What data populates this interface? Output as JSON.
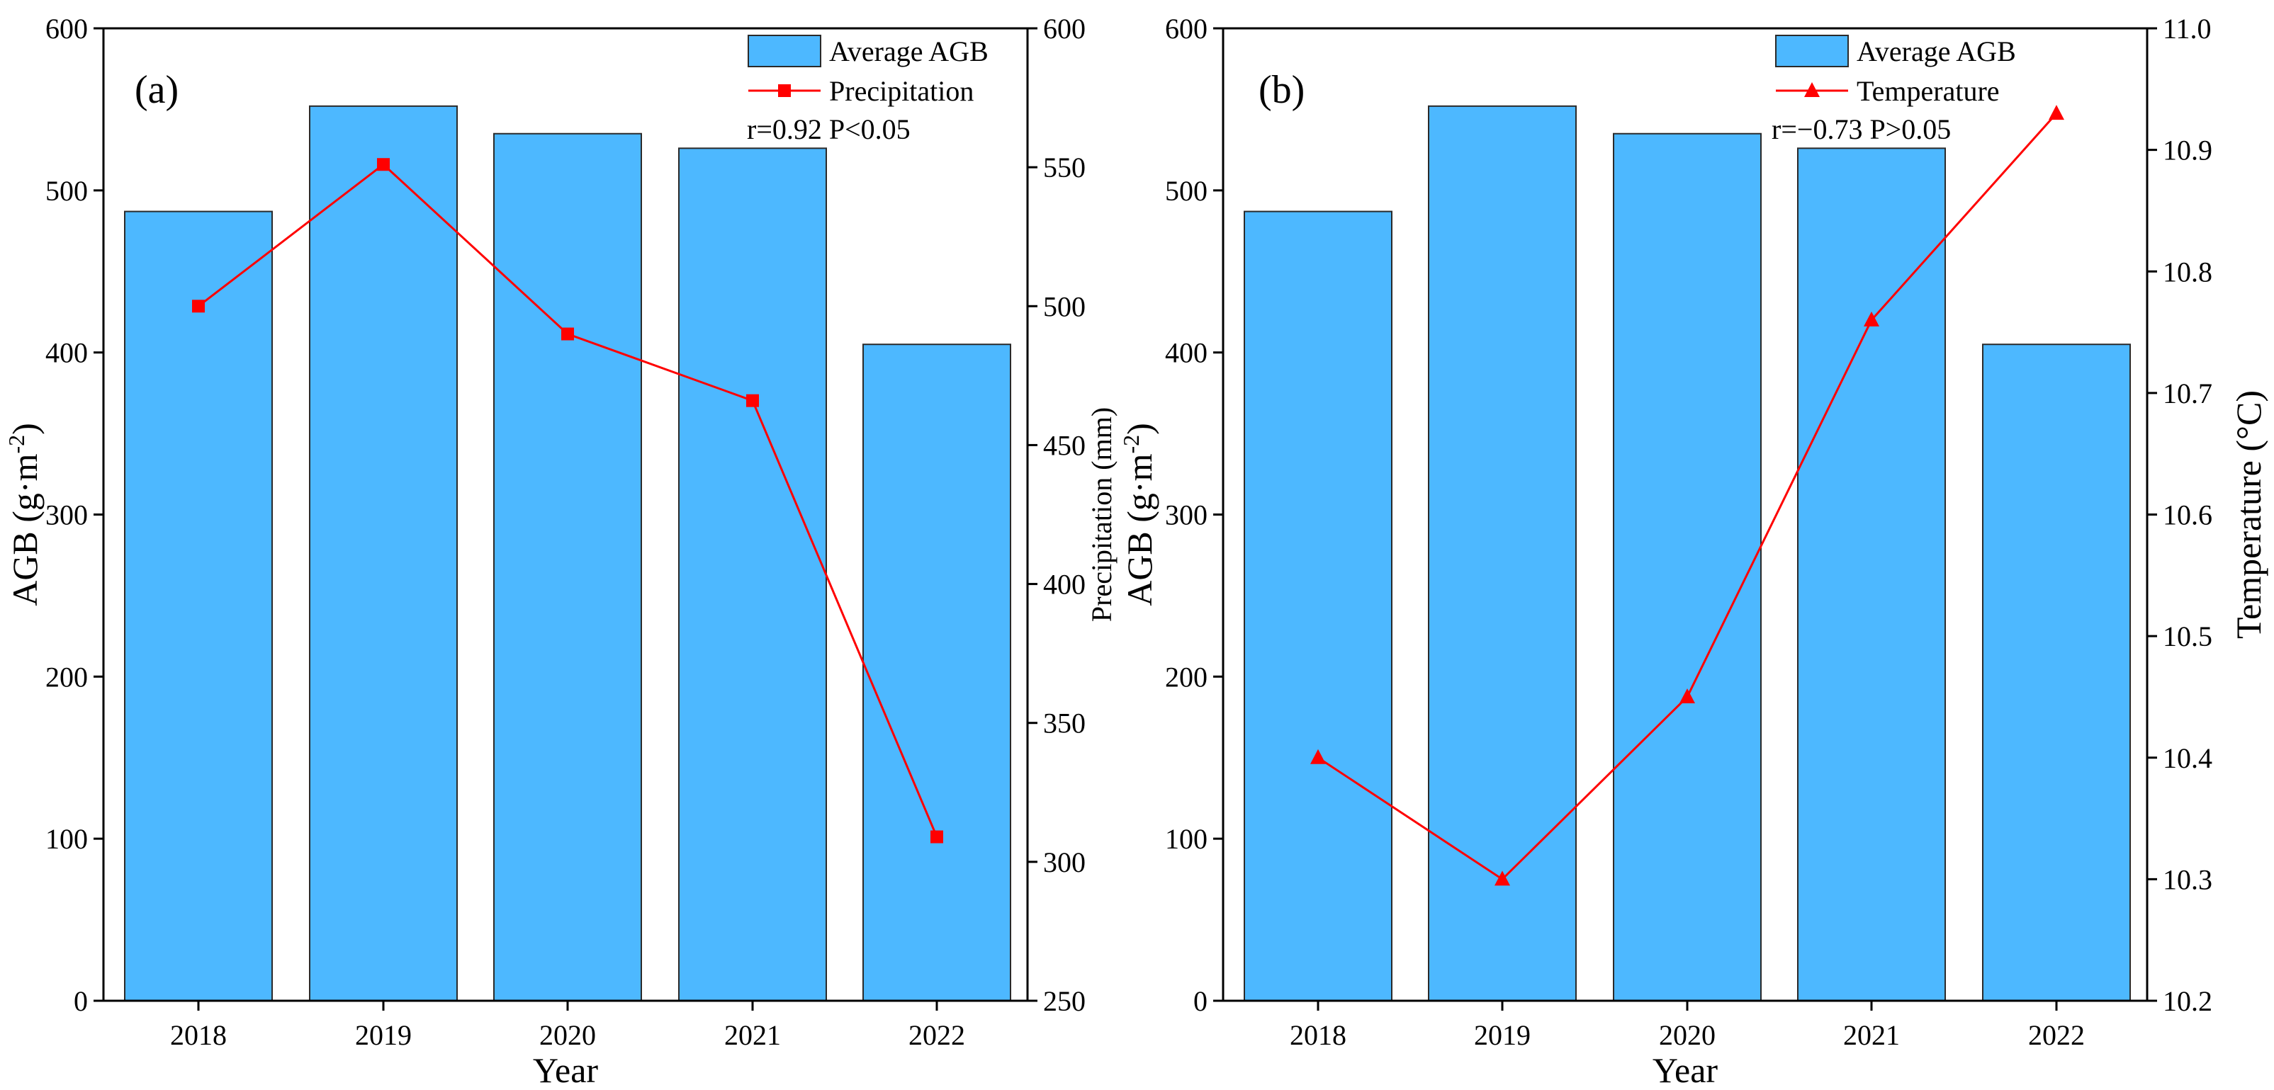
{
  "colors": {
    "bar_fill": "#4DB8FF",
    "bar_stroke": "#2a2a2a",
    "line": "#FF0000",
    "axis": "#000000"
  },
  "chart_data": [
    {
      "type": "bar+line",
      "panel_label": "(a)",
      "categories": [
        "2018",
        "2019",
        "2020",
        "2021",
        "2022"
      ],
      "xlabel": "Year",
      "ylabel_left": "AGB (g·m",
      "ylabel_left_sup": "-2",
      "ylabel_left_suffix": ")",
      "ylabel_right": "Precipitation (mm)",
      "ylim_left": [
        0,
        600
      ],
      "yticks_left": [
        0,
        100,
        200,
        300,
        400,
        500,
        600
      ],
      "ylim_right": [
        250,
        600
      ],
      "yticks_right": [
        250,
        300,
        350,
        400,
        450,
        500,
        550,
        600
      ],
      "series": [
        {
          "name": "Average AGB",
          "kind": "bar",
          "axis": "left",
          "values": [
            487,
            552,
            535,
            526,
            405
          ]
        },
        {
          "name": "Precipitation",
          "kind": "line",
          "marker": "square",
          "axis": "right",
          "values": [
            500,
            551,
            490,
            466,
            309
          ]
        }
      ],
      "legend": [
        "Average AGB",
        "Precipitation"
      ],
      "legend_position": "top-right",
      "annotation": "r=0.92  P<0.05"
    },
    {
      "type": "bar+line",
      "panel_label": "(b)",
      "categories": [
        "2018",
        "2019",
        "2020",
        "2021",
        "2022"
      ],
      "xlabel": "Year",
      "ylabel_left": "AGB (g·m",
      "ylabel_left_sup": "-2",
      "ylabel_left_suffix": ")",
      "ylabel_right": "Temperature (°C)",
      "ylim_left": [
        0,
        600
      ],
      "yticks_left": [
        0,
        100,
        200,
        300,
        400,
        500,
        600
      ],
      "ylim_right": [
        10.2,
        11.0
      ],
      "yticks_right": [
        "10.2",
        "10.3",
        "10.4",
        "10.5",
        "10.6",
        "10.7",
        "10.8",
        "10.9",
        "11.0"
      ],
      "series": [
        {
          "name": "Average AGB",
          "kind": "bar",
          "axis": "left",
          "values": [
            487,
            552,
            535,
            526,
            405
          ]
        },
        {
          "name": "Temperature",
          "kind": "line",
          "marker": "triangle",
          "axis": "right",
          "values": [
            10.4,
            10.3,
            10.45,
            10.76,
            10.93
          ]
        }
      ],
      "legend": [
        "Average AGB",
        "Temperature"
      ],
      "legend_position": "top-right",
      "annotation": "r=−0.73  P>0.05"
    }
  ]
}
